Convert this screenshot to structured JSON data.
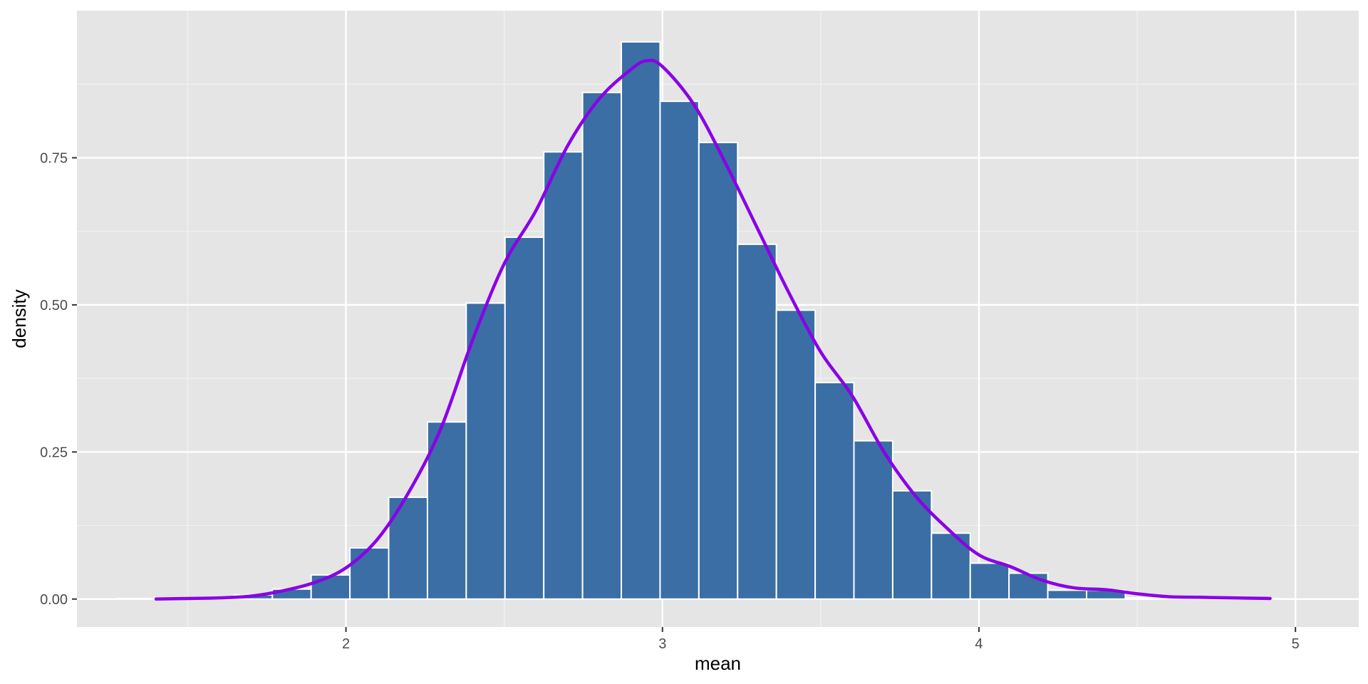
{
  "chart_data": {
    "type": "bar",
    "subtype": "histogram-with-density",
    "title": "",
    "xlabel": "mean",
    "ylabel": "density",
    "xlim": [
      1.15,
      5.2
    ],
    "ylim": [
      -0.0475,
      1.0
    ],
    "x_ticks": [
      2,
      3,
      4,
      5
    ],
    "x_tick_labels": [
      "2",
      "3",
      "4",
      "5"
    ],
    "y_ticks": [
      0.0,
      0.25,
      0.5,
      0.75
    ],
    "y_tick_labels": [
      "0.00",
      "0.25",
      "0.50",
      "0.75"
    ],
    "x_minor_ticks": [
      1.5,
      2.5,
      3.5,
      4.5
    ],
    "y_minor_ticks": [
      0.125,
      0.375,
      0.625,
      0.875
    ],
    "grid": true,
    "bin_width": 0.1225,
    "bins": [
      {
        "x0": 1.2775,
        "x1": 1.4,
        "density": 0.001
      },
      {
        "x0": 1.4,
        "x1": 1.5225,
        "density": 0.001
      },
      {
        "x0": 1.5225,
        "x1": 1.645,
        "density": 0.002
      },
      {
        "x0": 1.645,
        "x1": 1.7675,
        "density": 0.007
      },
      {
        "x0": 1.7675,
        "x1": 1.89,
        "density": 0.017
      },
      {
        "x0": 1.89,
        "x1": 2.0125,
        "density": 0.041
      },
      {
        "x0": 2.0125,
        "x1": 2.135,
        "density": 0.087
      },
      {
        "x0": 2.135,
        "x1": 2.2575,
        "density": 0.173
      },
      {
        "x0": 2.2575,
        "x1": 2.38,
        "density": 0.301
      },
      {
        "x0": 2.38,
        "x1": 2.5025,
        "density": 0.503
      },
      {
        "x0": 2.5025,
        "x1": 2.625,
        "density": 0.615
      },
      {
        "x0": 2.625,
        "x1": 2.7475,
        "density": 0.76
      },
      {
        "x0": 2.7475,
        "x1": 2.87,
        "density": 0.861
      },
      {
        "x0": 2.87,
        "x1": 2.9925,
        "density": 0.947
      },
      {
        "x0": 2.9925,
        "x1": 3.115,
        "density": 0.846
      },
      {
        "x0": 3.115,
        "x1": 3.2375,
        "density": 0.776
      },
      {
        "x0": 3.2375,
        "x1": 3.36,
        "density": 0.603
      },
      {
        "x0": 3.36,
        "x1": 3.4825,
        "density": 0.491
      },
      {
        "x0": 3.4825,
        "x1": 3.605,
        "density": 0.368
      },
      {
        "x0": 3.605,
        "x1": 3.7275,
        "density": 0.269
      },
      {
        "x0": 3.7275,
        "x1": 3.85,
        "density": 0.184
      },
      {
        "x0": 3.85,
        "x1": 3.9725,
        "density": 0.112
      },
      {
        "x0": 3.9725,
        "x1": 4.095,
        "density": 0.061
      },
      {
        "x0": 4.095,
        "x1": 4.2175,
        "density": 0.044
      },
      {
        "x0": 4.2175,
        "x1": 4.34,
        "density": 0.015
      },
      {
        "x0": 4.34,
        "x1": 4.4625,
        "density": 0.015
      },
      {
        "x0": 4.4625,
        "x1": 4.585,
        "density": 0.002
      },
      {
        "x0": 4.585,
        "x1": 4.7075,
        "density": 0.001
      },
      {
        "x0": 4.7075,
        "x1": 4.83,
        "density": 0.001
      },
      {
        "x0": 4.83,
        "x1": 4.9525,
        "density": 0.001
      }
    ],
    "density_curve": [
      [
        1.4,
        0.0
      ],
      [
        1.5,
        0.001
      ],
      [
        1.6,
        0.002
      ],
      [
        1.7,
        0.005
      ],
      [
        1.8,
        0.014
      ],
      [
        1.9,
        0.028
      ],
      [
        2.0,
        0.053
      ],
      [
        2.1,
        0.102
      ],
      [
        2.2,
        0.183
      ],
      [
        2.3,
        0.29
      ],
      [
        2.4,
        0.44
      ],
      [
        2.5,
        0.57
      ],
      [
        2.6,
        0.66
      ],
      [
        2.7,
        0.77
      ],
      [
        2.8,
        0.85
      ],
      [
        2.9,
        0.9
      ],
      [
        2.95,
        0.915
      ],
      [
        3.0,
        0.905
      ],
      [
        3.1,
        0.84
      ],
      [
        3.2,
        0.74
      ],
      [
        3.3,
        0.63
      ],
      [
        3.4,
        0.52
      ],
      [
        3.5,
        0.42
      ],
      [
        3.6,
        0.345
      ],
      [
        3.7,
        0.25
      ],
      [
        3.8,
        0.175
      ],
      [
        3.9,
        0.12
      ],
      [
        4.0,
        0.075
      ],
      [
        4.1,
        0.055
      ],
      [
        4.2,
        0.032
      ],
      [
        4.3,
        0.019
      ],
      [
        4.4,
        0.016
      ],
      [
        4.5,
        0.009
      ],
      [
        4.6,
        0.004
      ],
      [
        4.7,
        0.003
      ],
      [
        4.8,
        0.002
      ],
      [
        4.92,
        0.001
      ]
    ],
    "colors": {
      "panel_background": "#e5e5e5",
      "grid_major": "#ffffff",
      "grid_minor": "#f2f2f2",
      "bar_fill": "#3a6ea5",
      "bar_outline": "#ffffff",
      "density_line": "#8a00e6",
      "tick_color": "#333333",
      "tick_label_color": "#4d4d4d"
    }
  }
}
